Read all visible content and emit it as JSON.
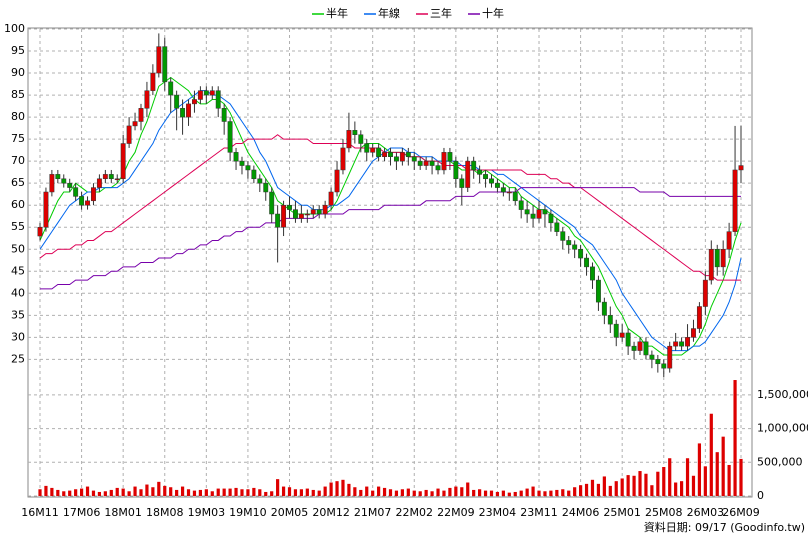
{
  "chart_data": {
    "type": "candlestick",
    "categories": [
      "16M11",
      null,
      null,
      null,
      null,
      null,
      null,
      "17M06",
      null,
      null,
      null,
      null,
      null,
      null,
      "18M01",
      null,
      null,
      null,
      null,
      null,
      null,
      "18M08",
      null,
      null,
      null,
      null,
      null,
      null,
      "19M03",
      null,
      null,
      null,
      null,
      null,
      null,
      "19M10",
      null,
      null,
      null,
      null,
      null,
      null,
      "20M05",
      null,
      null,
      null,
      null,
      null,
      null,
      "20M12",
      null,
      null,
      null,
      null,
      null,
      null,
      "21M07",
      null,
      null,
      null,
      null,
      null,
      null,
      "22M02",
      null,
      null,
      null,
      null,
      null,
      null,
      "22M09",
      null,
      null,
      null,
      null,
      null,
      null,
      "23M04",
      null,
      null,
      null,
      null,
      null,
      null,
      "23M11",
      null,
      null,
      null,
      null,
      null,
      null,
      "24M06",
      null,
      null,
      null,
      null,
      null,
      null,
      "25M01",
      null,
      null,
      null,
      null,
      null,
      null,
      "25M08",
      null,
      null,
      null,
      null,
      null,
      null,
      "26M03",
      null,
      null,
      null,
      null,
      null,
      "26M09"
    ],
    "candles": {
      "open": [
        53,
        55,
        63,
        67,
        66,
        65,
        64,
        62,
        60,
        61,
        64,
        66,
        67,
        66,
        66,
        74,
        78,
        79,
        82,
        86,
        90,
        96,
        88,
        85,
        82,
        80,
        83,
        84,
        86,
        85,
        86,
        82,
        79,
        72,
        70,
        69,
        68,
        66,
        65,
        63,
        58,
        55,
        60,
        59,
        57,
        58,
        58,
        59,
        58,
        60,
        63,
        68,
        73,
        77,
        76,
        74,
        72,
        73,
        71,
        72,
        71,
        70,
        72,
        71,
        70,
        69,
        70,
        69,
        68,
        72,
        70,
        66,
        64,
        70,
        68,
        67,
        66,
        65,
        64,
        63,
        63,
        61,
        59,
        58,
        57,
        59,
        58,
        56,
        54,
        52,
        51,
        50,
        48,
        46,
        43,
        38,
        35,
        33,
        30,
        31,
        28,
        27,
        29,
        26,
        25,
        24,
        23,
        28,
        29,
        28,
        30,
        32,
        37,
        43,
        50,
        46,
        50,
        54,
        68
      ],
      "high": [
        56,
        64,
        68,
        68,
        67,
        66,
        65,
        63,
        62,
        65,
        67,
        68,
        68,
        67,
        76,
        80,
        81,
        83,
        88,
        92,
        99,
        98,
        89,
        86,
        84,
        84,
        86,
        87,
        87,
        87,
        87,
        83,
        80,
        73,
        71,
        70,
        69,
        67,
        66,
        64,
        60,
        61,
        62,
        61,
        60,
        59,
        60,
        60,
        61,
        64,
        70,
        75,
        81,
        79,
        77,
        75,
        74,
        74,
        73,
        73,
        72,
        73,
        73,
        72,
        71,
        71,
        71,
        70,
        73,
        73,
        71,
        67,
        71,
        71,
        69,
        68,
        67,
        66,
        65,
        64,
        64,
        62,
        61,
        60,
        61,
        60,
        59,
        57,
        55,
        53,
        52,
        51,
        49,
        47,
        44,
        39,
        37,
        34,
        33,
        32,
        29,
        30,
        30,
        27,
        26,
        25,
        29,
        31,
        30,
        33,
        34,
        38,
        45,
        52,
        51,
        52,
        56,
        78,
        78
      ],
      "low": [
        52,
        54,
        62,
        65,
        64,
        63,
        61,
        59,
        59,
        60,
        63,
        65,
        65,
        65,
        65,
        73,
        77,
        77,
        80,
        85,
        89,
        86,
        81,
        77,
        76,
        78,
        81,
        83,
        83,
        84,
        80,
        76,
        70,
        68,
        67,
        66,
        65,
        63,
        61,
        56,
        47,
        53,
        57,
        56,
        56,
        56,
        57,
        57,
        57,
        59,
        62,
        67,
        72,
        74,
        72,
        70,
        71,
        70,
        70,
        69,
        68,
        69,
        69,
        68,
        68,
        68,
        67,
        67,
        67,
        68,
        64,
        60,
        63,
        66,
        65,
        64,
        64,
        63,
        62,
        61,
        60,
        57,
        56,
        55,
        56,
        55,
        54,
        53,
        50,
        49,
        48,
        46,
        44,
        41,
        36,
        33,
        31,
        28,
        29,
        26,
        25,
        26,
        25,
        23,
        22,
        21,
        22,
        27,
        27,
        27,
        29,
        31,
        35,
        42,
        44,
        44,
        48,
        53,
        65
      ],
      "close": [
        55,
        63,
        67,
        66,
        65,
        64,
        62,
        60,
        61,
        64,
        66,
        67,
        66,
        66,
        74,
        78,
        79,
        82,
        86,
        90,
        96,
        88,
        85,
        82,
        80,
        83,
        84,
        86,
        85,
        86,
        82,
        79,
        72,
        70,
        69,
        68,
        66,
        65,
        63,
        58,
        55,
        60,
        59,
        57,
        58,
        58,
        59,
        58,
        60,
        63,
        68,
        73,
        77,
        76,
        74,
        72,
        73,
        71,
        72,
        71,
        70,
        72,
        71,
        70,
        69,
        70,
        69,
        68,
        72,
        70,
        66,
        64,
        70,
        68,
        67,
        66,
        65,
        64,
        63,
        63,
        61,
        59,
        58,
        57,
        59,
        58,
        56,
        54,
        52,
        51,
        50,
        48,
        46,
        43,
        38,
        35,
        33,
        30,
        31,
        28,
        27,
        29,
        26,
        25,
        24,
        23,
        28,
        29,
        28,
        30,
        32,
        37,
        43,
        50,
        46,
        50,
        54,
        68,
        69
      ]
    },
    "up_color": "#dd0000",
    "down_color": "#009900",
    "series": [
      {
        "name": "半年",
        "color": "#00cc00",
        "values": [
          52,
          55,
          58,
          61,
          63,
          63,
          65,
          64,
          63,
          63,
          63,
          64,
          64,
          65,
          67,
          70,
          72,
          76,
          79,
          83,
          87,
          88,
          89,
          88,
          87,
          86,
          84,
          83,
          83,
          84,
          84,
          83,
          81,
          78,
          75,
          72,
          70,
          68,
          66,
          64,
          61,
          60,
          59,
          58,
          58,
          58,
          58,
          58,
          58,
          59,
          61,
          64,
          67,
          70,
          73,
          74,
          74,
          74,
          73,
          72,
          72,
          72,
          71,
          71,
          71,
          70,
          70,
          70,
          70,
          70,
          69,
          68,
          68,
          68,
          67,
          68,
          67,
          66,
          65,
          64,
          64,
          62,
          61,
          60,
          59,
          59,
          58,
          57,
          56,
          55,
          53,
          52,
          50,
          48,
          46,
          43,
          40,
          37,
          35,
          32,
          31,
          30,
          28,
          28,
          27,
          26,
          26,
          26,
          26,
          27,
          28,
          30,
          33,
          37,
          40,
          43,
          47,
          52,
          56
        ]
      },
      {
        "name": "年線",
        "color": "#0066ee",
        "values": [
          50,
          52,
          54,
          56,
          58,
          60,
          61,
          62,
          63,
          63,
          64,
          64,
          64,
          64,
          65,
          66,
          68,
          70,
          72,
          74,
          77,
          79,
          81,
          82,
          83,
          84,
          85,
          86,
          86,
          85,
          85,
          84,
          83,
          81,
          79,
          77,
          75,
          72,
          70,
          67,
          64,
          63,
          62,
          61,
          60,
          60,
          59,
          59,
          59,
          60,
          60,
          61,
          62,
          64,
          66,
          68,
          70,
          71,
          72,
          73,
          73,
          73,
          72,
          72,
          71,
          71,
          71,
          70,
          70,
          70,
          70,
          69,
          69,
          69,
          68,
          68,
          68,
          67,
          67,
          66,
          65,
          64,
          63,
          62,
          61,
          60,
          59,
          58,
          57,
          56,
          55,
          53,
          52,
          51,
          49,
          47,
          45,
          43,
          40,
          38,
          36,
          34,
          32,
          30,
          29,
          28,
          27,
          27,
          27,
          27,
          28,
          28,
          29,
          31,
          33,
          35,
          38,
          42,
          48
        ]
      },
      {
        "name": "三年",
        "color": "#dd0055",
        "values": [
          48,
          49,
          49,
          50,
          50,
          50,
          51,
          51,
          52,
          52,
          53,
          54,
          54,
          55,
          56,
          57,
          58,
          59,
          60,
          61,
          62,
          63,
          64,
          65,
          66,
          67,
          68,
          69,
          70,
          71,
          72,
          73,
          73,
          74,
          74,
          75,
          75,
          75,
          75,
          75,
          76,
          75,
          75,
          75,
          75,
          75,
          74,
          74,
          74,
          74,
          74,
          74,
          74,
          73,
          73,
          73,
          73,
          73,
          72,
          72,
          72,
          72,
          71,
          71,
          71,
          70,
          70,
          70,
          69,
          69,
          69,
          69,
          68,
          68,
          68,
          68,
          68,
          68,
          68,
          68,
          68,
          68,
          67,
          67,
          67,
          67,
          66,
          66,
          65,
          65,
          64,
          64,
          63,
          62,
          61,
          60,
          59,
          58,
          57,
          56,
          55,
          54,
          53,
          52,
          51,
          50,
          49,
          48,
          47,
          46,
          45,
          45,
          44,
          44,
          43,
          43,
          43,
          43,
          43
        ]
      },
      {
        "name": "十年",
        "color": "#7700aa",
        "values": [
          41,
          41,
          41,
          42,
          42,
          42,
          43,
          43,
          43,
          44,
          44,
          44,
          45,
          45,
          46,
          46,
          46,
          47,
          47,
          47,
          48,
          48,
          48,
          49,
          49,
          50,
          50,
          51,
          51,
          52,
          52,
          53,
          53,
          54,
          54,
          55,
          55,
          55,
          56,
          56,
          56,
          57,
          57,
          57,
          57,
          57,
          57,
          58,
          58,
          58,
          58,
          58,
          59,
          59,
          59,
          59,
          59,
          59,
          60,
          60,
          60,
          60,
          60,
          60,
          60,
          61,
          61,
          61,
          61,
          61,
          62,
          62,
          62,
          62,
          63,
          63,
          63,
          63,
          63,
          63,
          63,
          64,
          64,
          64,
          64,
          64,
          64,
          64,
          64,
          64,
          64,
          64,
          64,
          64,
          64,
          64,
          64,
          64,
          64,
          64,
          64,
          63,
          63,
          63,
          63,
          63,
          62,
          62,
          62,
          62,
          62,
          62,
          62,
          62,
          62,
          62,
          62,
          62,
          62
        ]
      }
    ],
    "ylim": [
      21,
      100
    ],
    "yticks": [
      25,
      30,
      35,
      40,
      45,
      50,
      55,
      60,
      65,
      70,
      75,
      80,
      85,
      90,
      95,
      100
    ],
    "volume": {
      "color": "#dd0000",
      "values": [
        100000,
        150000,
        120000,
        90000,
        70000,
        80000,
        100000,
        110000,
        140000,
        80000,
        60000,
        70000,
        90000,
        120000,
        110000,
        70000,
        140000,
        100000,
        170000,
        130000,
        210000,
        150000,
        130000,
        90000,
        140000,
        100000,
        80000,
        90000,
        100000,
        70000,
        110000,
        110000,
        110000,
        120000,
        100000,
        100000,
        120000,
        100000,
        60000,
        70000,
        250000,
        140000,
        130000,
        100000,
        100000,
        110000,
        90000,
        80000,
        140000,
        200000,
        220000,
        240000,
        180000,
        130000,
        90000,
        140000,
        80000,
        140000,
        120000,
        100000,
        80000,
        100000,
        110000,
        80000,
        70000,
        90000,
        70000,
        110000,
        80000,
        120000,
        140000,
        130000,
        200000,
        90000,
        100000,
        80000,
        80000,
        60000,
        80000,
        50000,
        60000,
        80000,
        110000,
        140000,
        80000,
        70000,
        80000,
        90000,
        100000,
        80000,
        130000,
        160000,
        180000,
        240000,
        180000,
        290000,
        150000,
        220000,
        260000,
        310000,
        300000,
        370000,
        330000,
        160000,
        360000,
        430000,
        560000,
        200000,
        220000,
        560000,
        300000,
        780000,
        440000,
        1220000,
        650000,
        880000,
        460000,
        1720000,
        550000
      ],
      "ylim": [
        0,
        1750000
      ],
      "yticks": [
        0,
        {
          "value": 500000,
          "label": "500,000"
        },
        {
          "value": 1000000,
          "label": "1,000,000"
        },
        {
          "value": 1500000,
          "label": "1,500,000"
        }
      ]
    },
    "grid": true,
    "source": "資料日期: 09/17  (Goodinfo.tw)"
  }
}
